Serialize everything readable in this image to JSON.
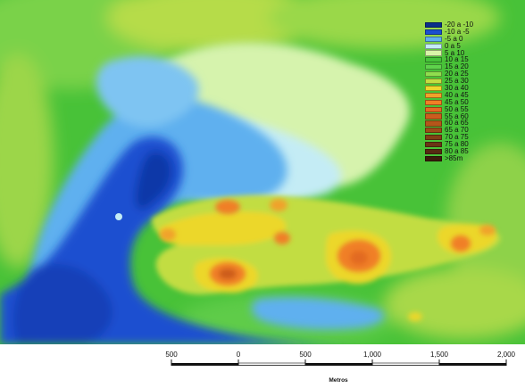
{
  "legend": {
    "items": [
      {
        "label": "-20 a -10",
        "color": "#0a2f8a"
      },
      {
        "label": "-10 a -5",
        "color": "#1a4fd0"
      },
      {
        "label": "-5 a 0",
        "color": "#5fb0ef"
      },
      {
        "label": "0 a 5",
        "color": "#c4ecf5"
      },
      {
        "label": "5 a 10",
        "color": "#d8f4a8"
      },
      {
        "label": "10 a 15",
        "color": "#46c23a"
      },
      {
        "label": "15 a 20",
        "color": "#5fd24c"
      },
      {
        "label": "20 a 25",
        "color": "#90dd4e"
      },
      {
        "label": "25 a 30",
        "color": "#c2dd42"
      },
      {
        "label": "30 a 40",
        "color": "#ecd72c"
      },
      {
        "label": "40 a 45",
        "color": "#f0a22a"
      },
      {
        "label": "45 a 50",
        "color": "#f07f26"
      },
      {
        "label": "50 a 55",
        "color": "#e26a22"
      },
      {
        "label": "55 a 60",
        "color": "#cc5c1e"
      },
      {
        "label": "60 a 65",
        "color": "#b4561a"
      },
      {
        "label": "65 a 70",
        "color": "#9a4c18"
      },
      {
        "label": "70 a 75",
        "color": "#804016"
      },
      {
        "label": "75 a 80",
        "color": "#6a3414"
      },
      {
        "label": "80 a 85",
        "color": "#552a12"
      },
      {
        "label": ">85m",
        "color": "#3a1d0c"
      }
    ]
  },
  "scale": {
    "ticks": [
      "500",
      "0",
      "500",
      "1,000",
      "1,500",
      "2,000"
    ],
    "unit": "Metros"
  }
}
